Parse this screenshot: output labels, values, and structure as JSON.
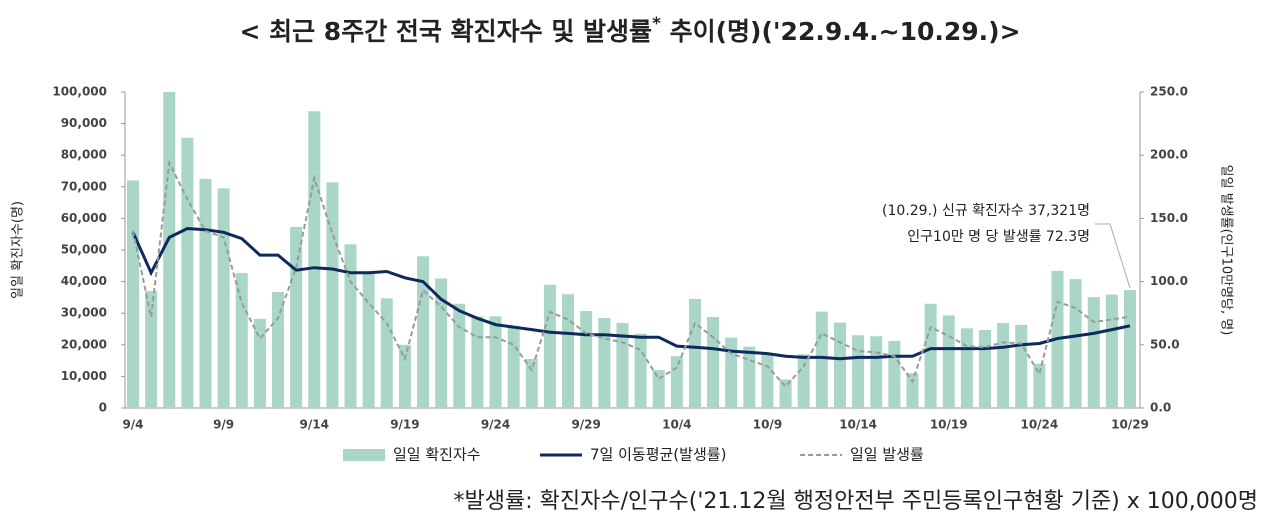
{
  "chart_data": {
    "type": "bar",
    "title": "< 최근 8주간 전국 확진자수 및 발생률",
    "title_mark": "*",
    "title_suffix": " 추이(명)('22.9.4.~10.29.)>",
    "y_label": "일일 확진자수(명)",
    "y2_label": "일일 발생률(인구10만명당, 명)",
    "annotation": [
      "(10.29.) 신규 확진자수 37,321명",
      "인구10만 명 당 발생률 72.3명"
    ],
    "footnote": "*발생률: 확진자수/인구수('21.12월 행정안전부 주민등록인구현황 기준) x 100,000명",
    "categories": [
      "9/4",
      null,
      null,
      null,
      null,
      "9/9",
      null,
      null,
      null,
      null,
      "9/14",
      null,
      null,
      null,
      null,
      "9/19",
      null,
      null,
      null,
      null,
      "9/24",
      null,
      null,
      null,
      null,
      "9/29",
      null,
      null,
      null,
      null,
      "10/4",
      null,
      null,
      null,
      null,
      "10/9",
      null,
      null,
      null,
      null,
      "10/14",
      null,
      null,
      null,
      null,
      "10/19",
      null,
      null,
      null,
      null,
      "10/24",
      null,
      null,
      null,
      null,
      "10/29"
    ],
    "series": [
      {
        "name": "일일 확진자수",
        "type": "bar",
        "axis": "y",
        "color": "#a9d6c6",
        "values": [
          72000,
          37000,
          100000,
          85500,
          72500,
          69500,
          42700,
          28200,
          36700,
          57300,
          93900,
          71400,
          51800,
          43000,
          34700,
          20000,
          48000,
          41000,
          33000,
          29000,
          29000,
          26000,
          15500,
          39000,
          36000,
          30700,
          28500,
          26900,
          23500,
          12000,
          16400,
          34500,
          28800,
          22300,
          19400,
          17000,
          9000,
          17000,
          30500,
          27000,
          23000,
          22700,
          21200,
          11000,
          33000,
          29300,
          25200,
          24700,
          26900,
          26300,
          14000,
          43400,
          40800,
          35100,
          35900,
          37321
        ]
      },
      {
        "name": "7일 이동평균(발생률)",
        "type": "line",
        "axis": "y2",
        "color": "#0d2a5e",
        "values": [
          139,
          107,
          135,
          142,
          141,
          139,
          134,
          121,
          121,
          109,
          111,
          110,
          107,
          107,
          108,
          103,
          100,
          86,
          77,
          71,
          66,
          64,
          62,
          60,
          59,
          58,
          58,
          57,
          56,
          56,
          49,
          48,
          47,
          45,
          44,
          43,
          41,
          40,
          40,
          39,
          40,
          40,
          41,
          41,
          47,
          47,
          47,
          47,
          48,
          50,
          51,
          55,
          57,
          59,
          62,
          65
        ]
      },
      {
        "name": "일일 발생률",
        "type": "dashed",
        "axis": "y2",
        "color": "#9a9a9a",
        "values": [
          140,
          72,
          194,
          165,
          140,
          135,
          83,
          55,
          71,
          111,
          182,
          138,
          100,
          83,
          67,
          39,
          93,
          80,
          64,
          56,
          56,
          50,
          30,
          76,
          70,
          59,
          55,
          52,
          46,
          23,
          32,
          67,
          56,
          43,
          38,
          33,
          17,
          33,
          59,
          52,
          45,
          44,
          41,
          21,
          64,
          57,
          49,
          48,
          52,
          51,
          27,
          84,
          79,
          68,
          70,
          72.3
        ]
      }
    ],
    "ylim": [
      0,
      100000
    ],
    "yticks": [
      0,
      {
        "value": 10000,
        "label": "10,000"
      },
      {
        "value": 20000,
        "label": "20,000"
      },
      {
        "value": 30000,
        "label": "30,000"
      },
      {
        "value": 40000,
        "label": "40,000"
      },
      {
        "value": 50000,
        "label": "50,000"
      },
      {
        "value": 60000,
        "label": "60,000"
      },
      {
        "value": 70000,
        "label": "70,000"
      },
      {
        "value": 80000,
        "label": "80,000"
      },
      {
        "value": 90000,
        "label": "90,000"
      },
      {
        "value": 100000,
        "label": "100,000"
      }
    ],
    "y2lim": [
      0,
      250
    ],
    "y2ticks": [
      {
        "value": 0,
        "label": "0.0"
      },
      {
        "value": 50,
        "label": "50.0"
      },
      {
        "value": 100,
        "label": "100.0"
      },
      {
        "value": 150,
        "label": "150.0"
      },
      {
        "value": 200,
        "label": "200.0"
      },
      {
        "value": 250,
        "label": "250.0"
      }
    ],
    "legend": "bottom"
  }
}
